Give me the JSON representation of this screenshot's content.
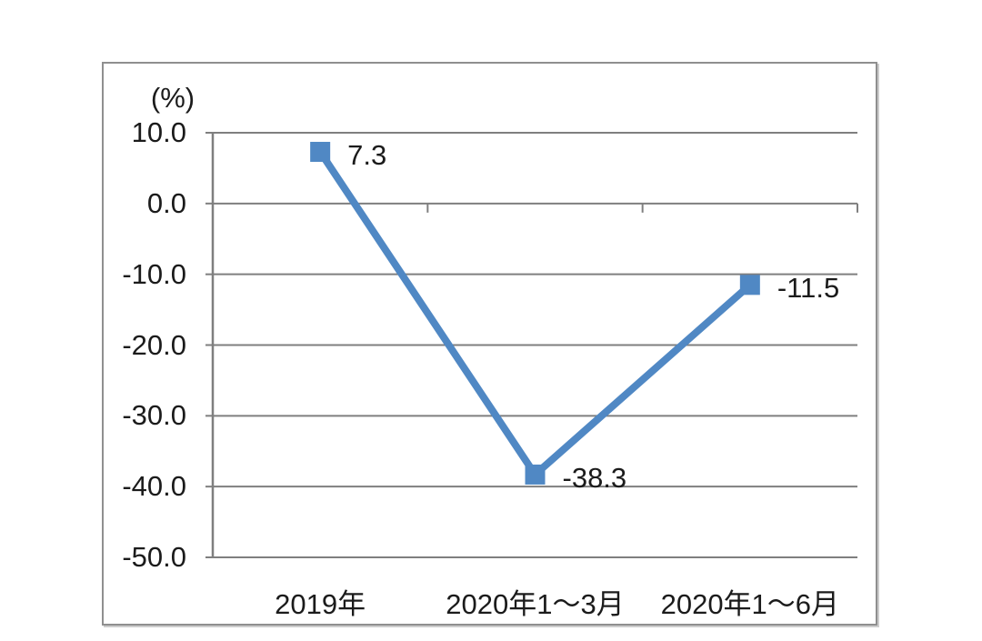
{
  "chart_data": {
    "type": "line",
    "title": "",
    "ylabel": "(%)",
    "xlabel": "",
    "categories": [
      "2019年",
      "2020年1～3月",
      "2020年1～6月"
    ],
    "values": [
      7.3,
      -38.3,
      -11.5
    ],
    "value_labels": [
      "7.3",
      "-38.3",
      "-11.5"
    ],
    "ylim": [
      -50,
      10
    ],
    "ytick_values": [
      10,
      0,
      -10,
      -20,
      -30,
      -40,
      -50
    ],
    "ytick_labels": [
      "10.0",
      "0.0",
      "-10.0",
      "-20.0",
      "-30.0",
      "-40.0",
      "-50.0"
    ],
    "grid": true,
    "legend": false,
    "marker": "square",
    "colors": {
      "line": "#5088C4",
      "marker": "#5088C4",
      "grid": "#7F7F7F",
      "axis": "#7F7F7F",
      "frame_border": "#8F8F8F",
      "text": "#1B1B1B",
      "background": "#FFFFFF"
    }
  }
}
